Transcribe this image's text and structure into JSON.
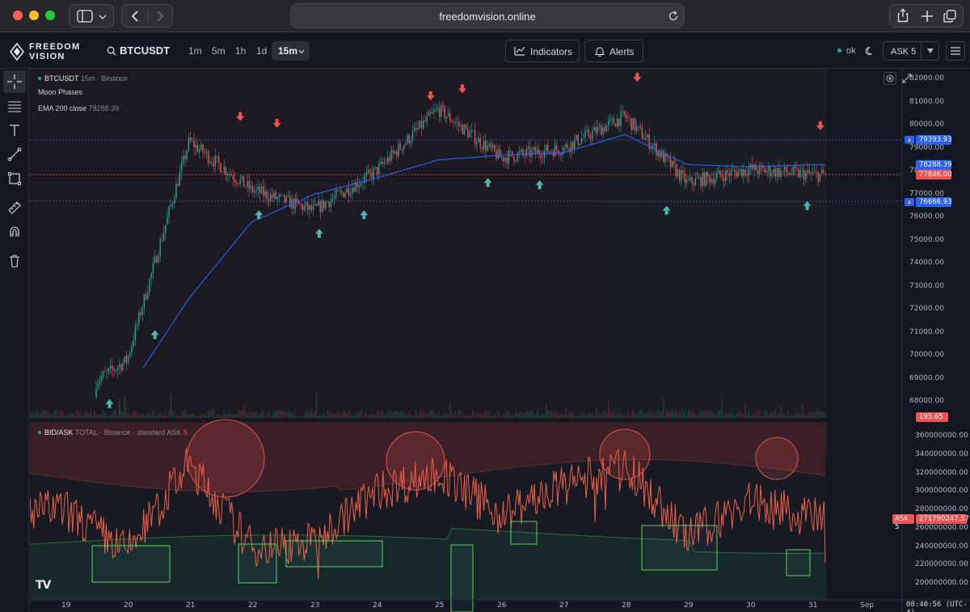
{
  "browser": {
    "url": "freedomvision.online"
  },
  "app": {
    "logo_line1": "FREEDOM",
    "logo_line2": "VISION",
    "symbol": "BTCUSDT",
    "timeframes": [
      "1m",
      "5m",
      "1h",
      "1d",
      "15m"
    ],
    "indicators_label": "Indicators",
    "alerts_label": "Alerts",
    "status_label": "ok",
    "ask_selector": "ASK 5"
  },
  "price_pane": {
    "legend_symbol": "BTCUSDT",
    "legend_meta": "15m · Binance",
    "indicator1": "Moon Phases",
    "indicator2_name": "EMA 200 close",
    "indicator2_value": "78288.39",
    "axis_labels": [
      "82000.00",
      "81000.00",
      "80000.00",
      "79000.00",
      "78000.00",
      "77000.00",
      "76000.00",
      "75000.00",
      "74000.00",
      "73000.00",
      "72000.00",
      "71000.00",
      "70000.00",
      "69000.00",
      "68000.00"
    ],
    "alert_high": "79393.93",
    "ema_tag": "78288.39",
    "last_price": "77846.00",
    "alert_low": "76666.93",
    "volume_tag": "195.65",
    "colors": {
      "up": "#26a69a",
      "down": "#ef5350",
      "ema": "#2962ff",
      "alert": "#2962ff"
    }
  },
  "bidask_pane": {
    "legend_title": "BID/ASK",
    "legend_meta": "TOTAL · Binance · standard",
    "legend_ask": "ASK",
    "legend_ask_value": "5",
    "axis_labels": [
      "360000000.00",
      "340000000.00",
      "320000000.00",
      "300000000.00",
      "280000000.00",
      "260000000.00",
      "240000000.00",
      "220000000.00",
      "200000000.00"
    ],
    "ask_tag_label": "ASK 5",
    "ask_tag_value": "271790247.57"
  },
  "time_axis": {
    "labels": [
      "19",
      "20",
      "21",
      "22",
      "23",
      "24",
      "25",
      "26",
      "27",
      "28",
      "29",
      "30",
      "31",
      "Sep"
    ],
    "clock": "08:40:56 (UTC-4)"
  },
  "chart_data": {
    "type": "line",
    "title": "",
    "series": [
      {
        "name": "BTCUSDT",
        "x": [
          "19",
          "20",
          "21",
          "22",
          "23",
          "24",
          "25",
          "26",
          "27",
          "28",
          "29",
          "30",
          "31"
        ],
        "values": [
          68000,
          69800,
          79300,
          77200,
          76300,
          78000,
          80700,
          78600,
          79000,
          80400,
          77500,
          78100,
          77850
        ]
      },
      {
        "name": "EMA 200 close",
        "x": [
          "19",
          "20",
          "21",
          "22",
          "23",
          "24",
          "25",
          "26",
          "27",
          "28",
          "29",
          "30",
          "31"
        ],
        "values": [
          66000,
          68400,
          72500,
          75800,
          77000,
          77700,
          78500,
          78700,
          78800,
          79600,
          78300,
          78200,
          78290
        ]
      },
      {
        "name": "BID/ASK",
        "x": [
          "19",
          "20",
          "21",
          "22",
          "23",
          "24",
          "25",
          "26",
          "27",
          "28",
          "29",
          "30",
          "31"
        ],
        "values": [
          280000000,
          235000000,
          330000000,
          240000000,
          245000000,
          300000000,
          320000000,
          275000000,
          305000000,
          330000000,
          250000000,
          290000000,
          271790247.57
        ]
      }
    ],
    "ylim_price": [
      67500,
      82500
    ],
    "ylim_bidask": [
      195000000,
      370000000
    ],
    "grid": false
  }
}
